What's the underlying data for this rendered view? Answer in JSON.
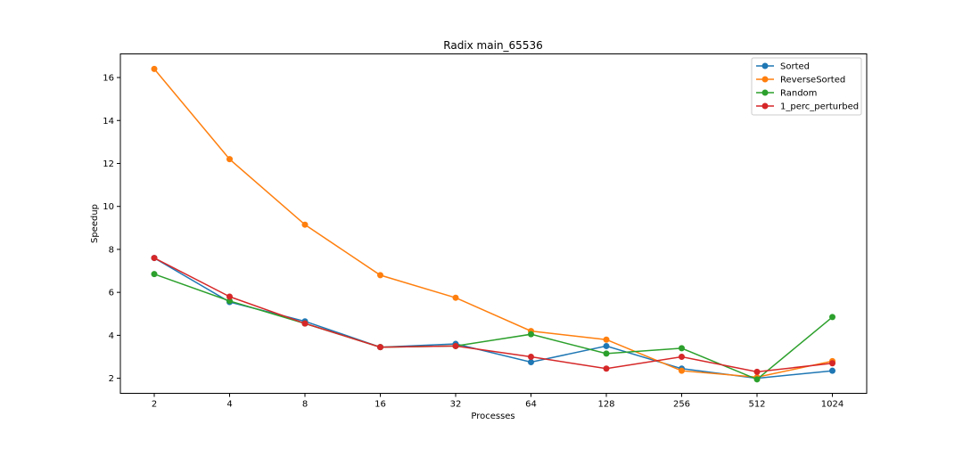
{
  "chart_data": {
    "type": "line",
    "title": "Radix main_65536",
    "xlabel": "Processes",
    "ylabel": "Speedup",
    "categories": [
      "2",
      "4",
      "8",
      "16",
      "32",
      "64",
      "128",
      "256",
      "512",
      "1024"
    ],
    "ylim": [
      1.3,
      17.1
    ],
    "yticks": [
      2,
      4,
      6,
      8,
      10,
      12,
      14,
      16
    ],
    "grid": false,
    "legend_position": "top-right",
    "series": [
      {
        "name": "Sorted",
        "color": "#1f77b4",
        "values": [
          7.6,
          5.55,
          4.65,
          3.45,
          3.6,
          2.75,
          3.5,
          2.45,
          2.0,
          2.35
        ]
      },
      {
        "name": "ReverseSorted",
        "color": "#ff7f0e",
        "values": [
          16.4,
          12.2,
          9.15,
          6.8,
          5.75,
          4.2,
          3.8,
          2.35,
          2.05,
          2.8
        ]
      },
      {
        "name": "Random",
        "color": "#2ca02c",
        "values": [
          6.85,
          5.6,
          4.55,
          3.45,
          3.5,
          4.05,
          3.15,
          3.4,
          1.95,
          4.85
        ]
      },
      {
        "name": "1_perc_perturbed",
        "color": "#d62728",
        "values": [
          7.6,
          5.8,
          4.55,
          3.45,
          3.5,
          3.0,
          2.45,
          3.0,
          2.3,
          2.7
        ]
      }
    ]
  }
}
